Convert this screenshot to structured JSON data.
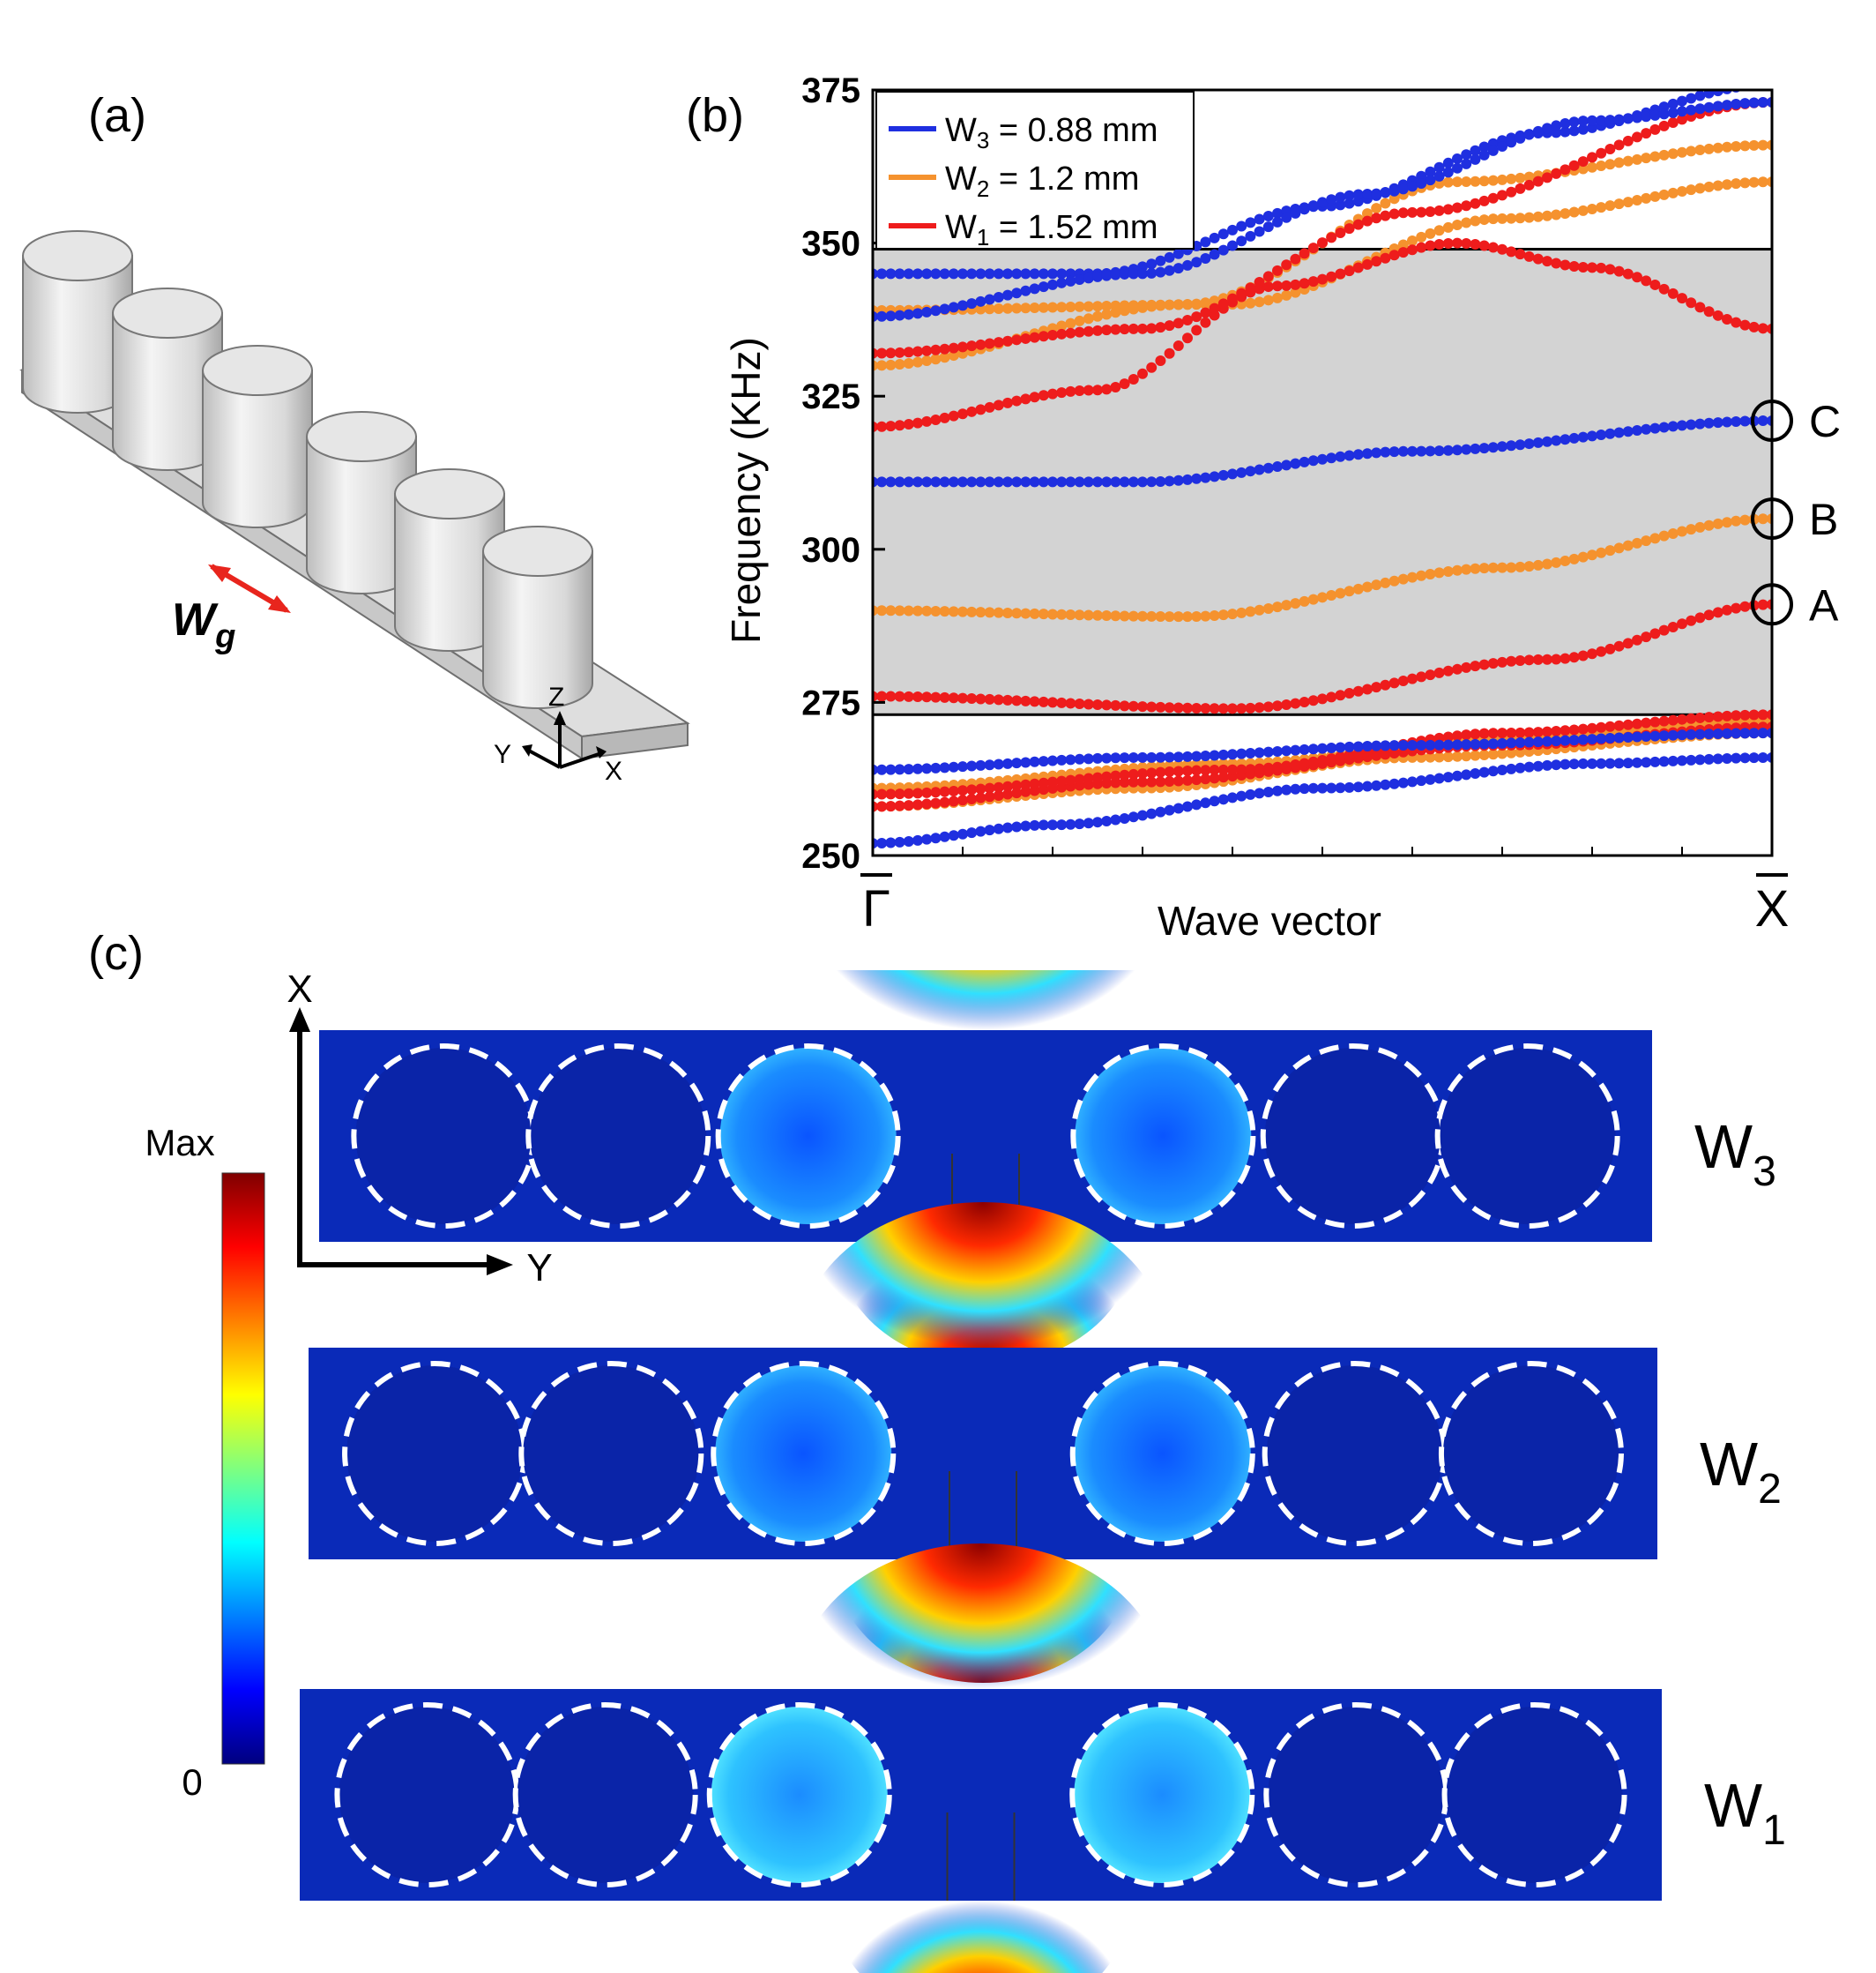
{
  "panels": {
    "a": "(a)",
    "b": "(b)",
    "c": "(c)"
  },
  "model": {
    "wg_letter": "W",
    "wg_subscript": "g",
    "axis_z": "Z",
    "axis_y": "Y",
    "axis_x": "X"
  },
  "chart_data": {
    "type": "line",
    "title": "",
    "xlabel": "Wave vector",
    "ylabel": "Frequency (KHz)",
    "x_start_label": "Γ",
    "x_end_label": "X",
    "x": [
      0,
      1
    ],
    "ylim": [
      250,
      375
    ],
    "yticks": [
      250,
      275,
      300,
      325,
      350,
      375
    ],
    "bandgap": [
      273,
      349
    ],
    "legend": [
      {
        "label": "W",
        "sub": "3",
        "rest": " = 0.88 mm",
        "color": "#1f2fe0"
      },
      {
        "label": "W",
        "sub": "2",
        "rest": " = 1.2 mm",
        "color": "#f5922e"
      },
      {
        "label": "W",
        "sub": "1",
        "rest": " = 1.52 mm",
        "color": "#ee1c1c"
      }
    ],
    "series": [
      {
        "name": "W3 = 0.88 mm",
        "color": "#1f2fe0",
        "bands": [
          [
            [
              0,
              311
            ],
            [
              0.3,
              311
            ],
            [
              0.6,
              316
            ],
            [
              1,
              321
            ]
          ],
          [
            [
              0,
              345
            ],
            [
              0.25,
              345
            ],
            [
              0.5,
              356
            ],
            [
              0.75,
              368
            ],
            [
              1,
              376
            ]
          ],
          [
            [
              0,
              338
            ],
            [
              0.3,
              345
            ],
            [
              0.55,
              358
            ],
            [
              0.8,
              370
            ],
            [
              1,
              373
            ]
          ],
          [
            [
              0,
              264
            ],
            [
              0.3,
              266
            ],
            [
              0.6,
              268
            ],
            [
              1,
              270
            ]
          ],
          [
            [
              0,
              252
            ],
            [
              0.2,
              255
            ],
            [
              0.5,
              261
            ],
            [
              0.8,
              265
            ],
            [
              1,
              266
            ]
          ]
        ]
      },
      {
        "name": "W2 = 1.2 mm",
        "color": "#f5922e",
        "bands": [
          [
            [
              0,
              290
            ],
            [
              0.35,
              289
            ],
            [
              0.7,
              297
            ],
            [
              1,
              305
            ]
          ],
          [
            [
              0,
              339
            ],
            [
              0.4,
              340
            ],
            [
              0.7,
              354
            ],
            [
              1,
              360
            ]
          ],
          [
            [
              0,
              330
            ],
            [
              0.35,
              340
            ],
            [
              0.65,
              360
            ],
            [
              1,
              366
            ]
          ],
          [
            [
              0,
              261
            ],
            [
              0.4,
              265
            ],
            [
              0.7,
              269
            ],
            [
              1,
              272
            ]
          ],
          [
            [
              0,
              258
            ],
            [
              0.3,
              261
            ],
            [
              0.6,
              266
            ],
            [
              1,
              270
            ]
          ]
        ]
      },
      {
        "name": "W1 = 1.52 mm",
        "color": "#ee1c1c",
        "bands": [
          [
            [
              0,
              276
            ],
            [
              0.4,
              274
            ],
            [
              0.75,
              282
            ],
            [
              1,
              291
            ]
          ],
          [
            [
              0,
              320
            ],
            [
              0.25,
              326
            ],
            [
              0.45,
              343
            ],
            [
              0.65,
              350
            ],
            [
              0.8,
              346
            ],
            [
              1,
              336
            ]
          ],
          [
            [
              0,
              332
            ],
            [
              0.3,
              336
            ],
            [
              0.6,
              355
            ],
            [
              1,
              373
            ]
          ],
          [
            [
              0,
              258
            ],
            [
              0.3,
              262
            ],
            [
              0.7,
              268
            ],
            [
              1,
              271
            ]
          ],
          [
            [
              0,
              260
            ],
            [
              0.4,
              264
            ],
            [
              0.7,
              270
            ],
            [
              1,
              273
            ]
          ]
        ]
      }
    ],
    "markers": [
      {
        "label": "A",
        "x": 1,
        "y": 291
      },
      {
        "label": "B",
        "x": 1,
        "y": 305
      },
      {
        "label": "C",
        "x": 1,
        "y": 321
      }
    ]
  },
  "fieldmaps": {
    "colorbar_max": "Max",
    "colorbar_min": "0",
    "axis_x": "X",
    "axis_y": "Y",
    "rows": [
      {
        "letter": "W",
        "sub": "3"
      },
      {
        "letter": "W",
        "sub": "2"
      },
      {
        "letter": "W",
        "sub": "1"
      }
    ]
  }
}
